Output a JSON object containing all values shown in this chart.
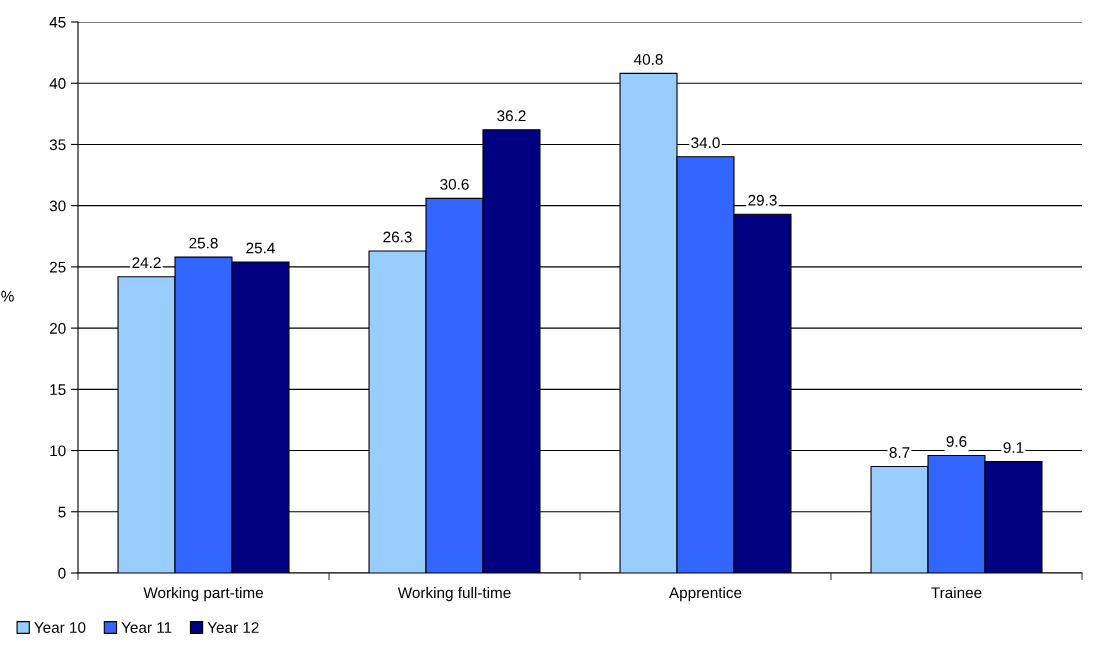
{
  "chart_data": {
    "type": "bar",
    "ylabel": "%",
    "categories": [
      "Working part-time",
      "Working full-time",
      "Apprentice",
      "Trainee"
    ],
    "series": [
      {
        "name": "Year 10",
        "color": "#99ccff",
        "values": [
          24.2,
          26.3,
          40.8,
          8.7
        ],
        "value_labels": [
          "24.2",
          "26.3",
          "40.8",
          "8.7"
        ]
      },
      {
        "name": "Year 11",
        "color": "#3366ff",
        "values": [
          25.8,
          30.6,
          34.0,
          9.6
        ],
        "value_labels": [
          "25.8",
          "30.6",
          "34.0",
          "9.6"
        ]
      },
      {
        "name": "Year 12",
        "color": "#000080",
        "values": [
          25.4,
          36.2,
          29.3,
          9.1
        ],
        "value_labels": [
          "25.4",
          "36.2",
          "29.3",
          "9.1"
        ]
      }
    ],
    "ylim": [
      0,
      45
    ],
    "yticks": [
      0,
      5,
      10,
      15,
      20,
      25,
      30,
      35,
      40,
      45
    ],
    "grid": "y",
    "legend": "bottom left"
  }
}
